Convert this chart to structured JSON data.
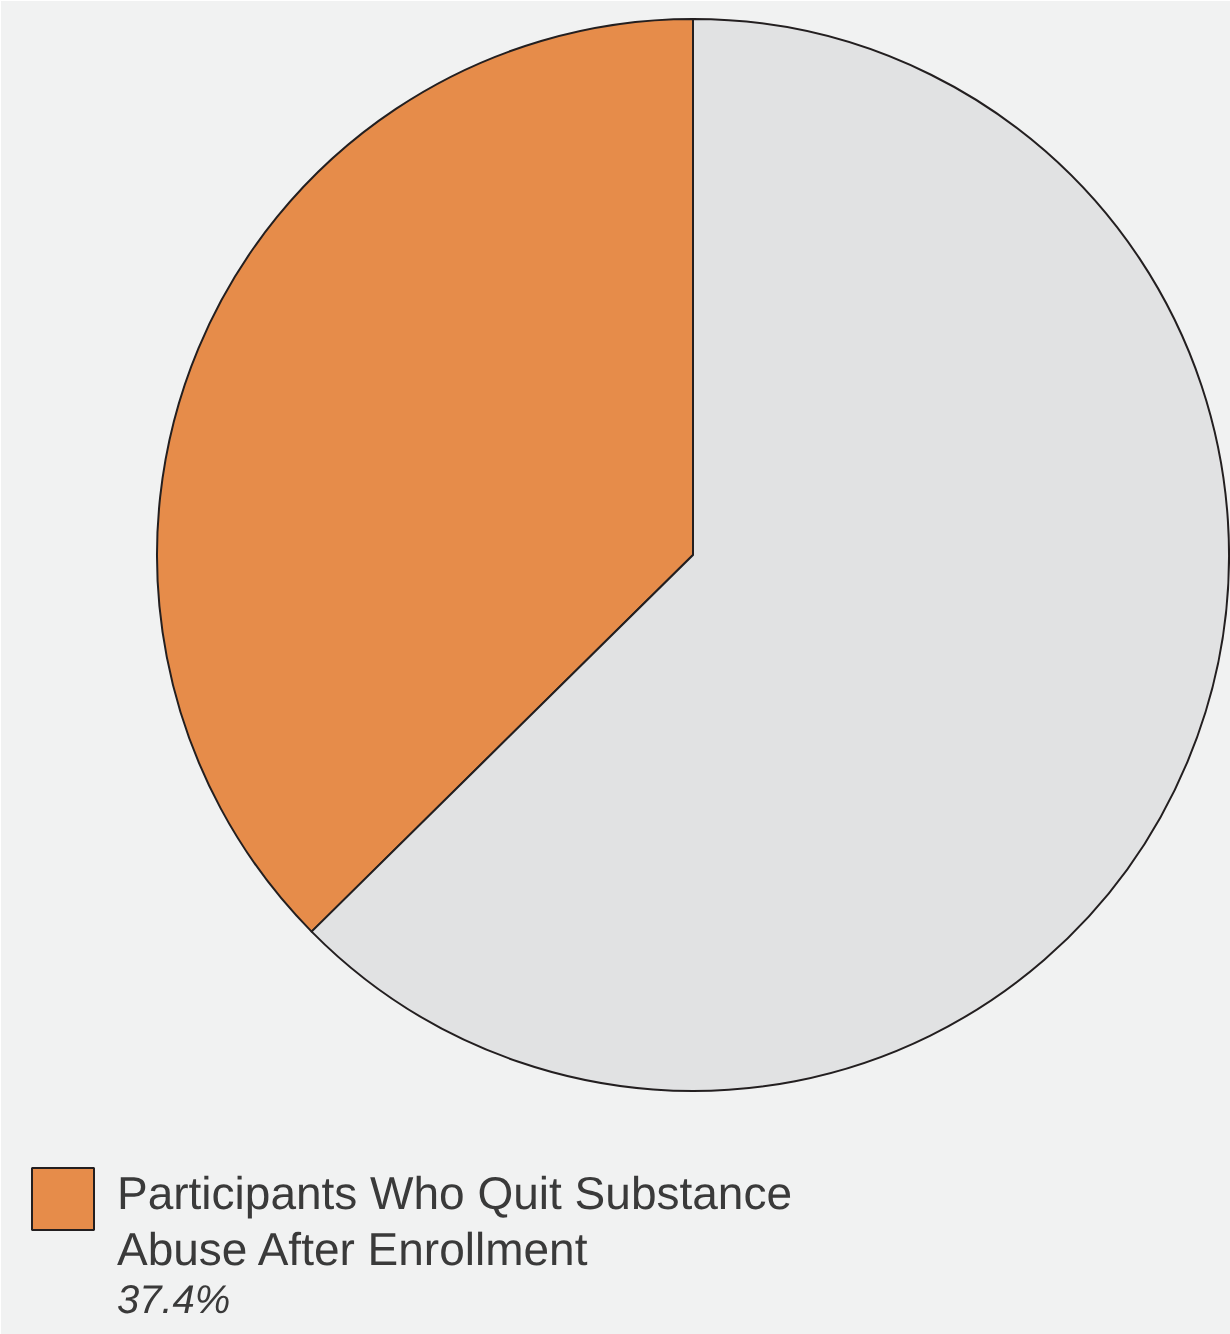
{
  "chart_data": {
    "type": "pie",
    "categories": [
      "Participants Who Quit Substance Abuse After Enrollment",
      null
    ],
    "values": [
      37.4,
      62.6
    ],
    "colors": [
      "#e68c4a",
      "#e1e2e3"
    ],
    "value_labels": [
      "37.4%",
      null
    ],
    "legend": "bottom"
  }
}
